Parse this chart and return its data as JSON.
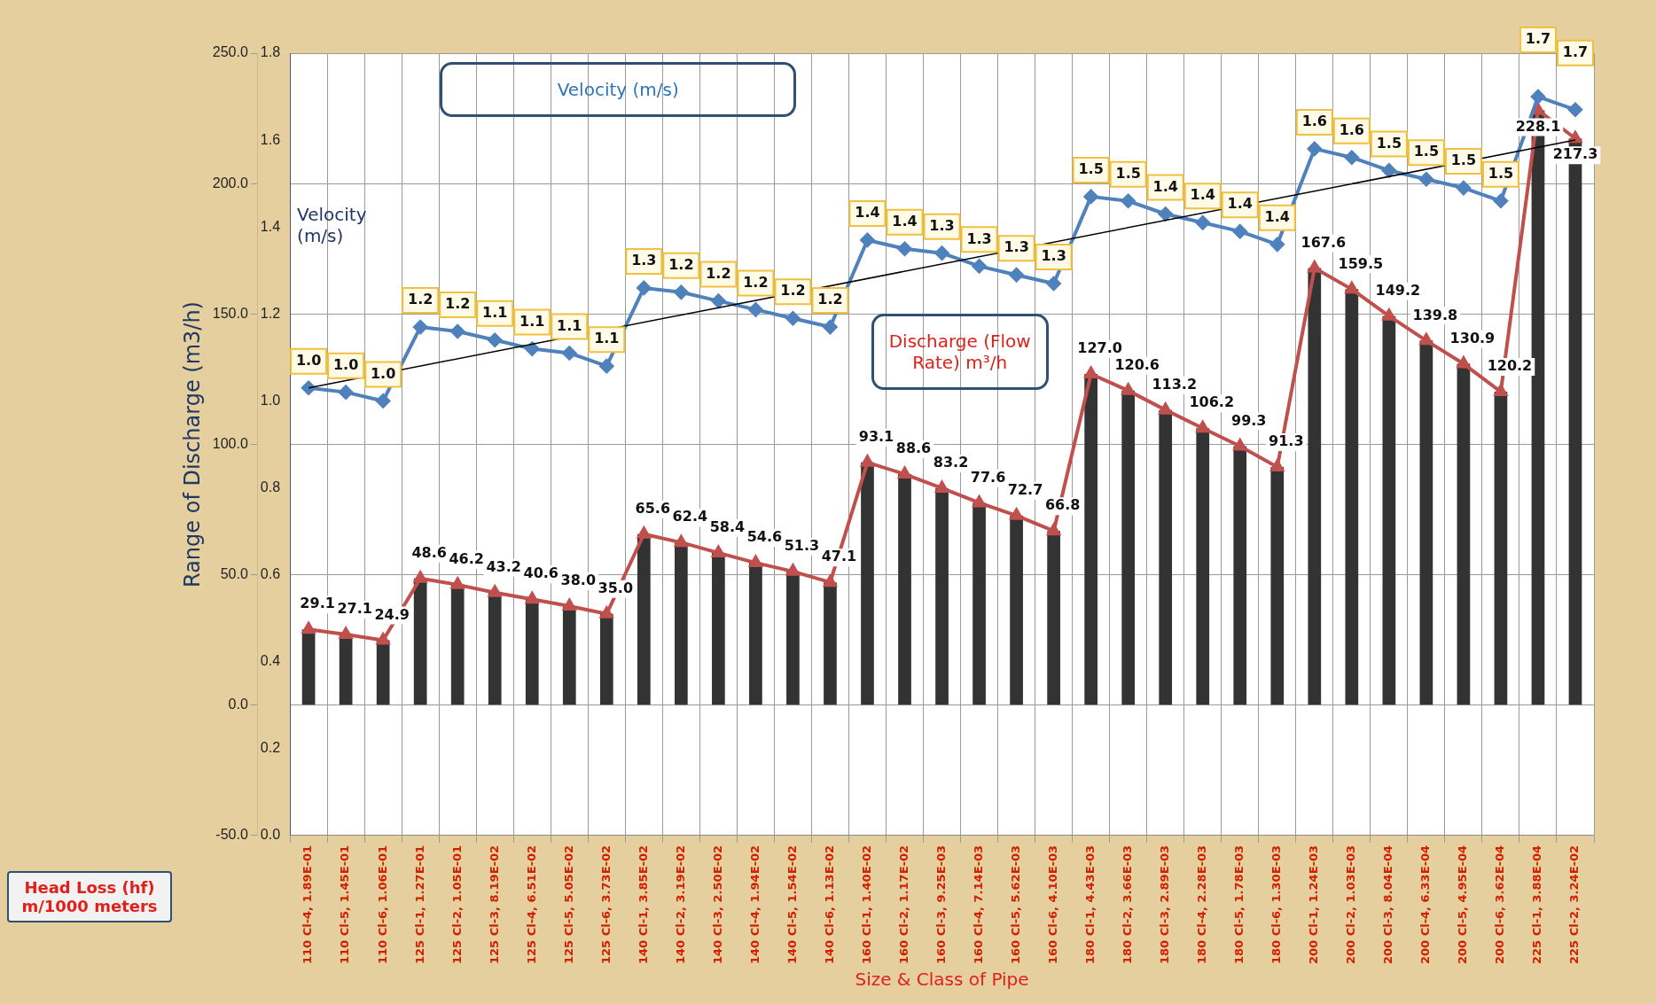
{
  "chart_data": {
    "type": "bar",
    "ylabel": "Range of Discharge (m3/h)",
    "y2label": "Velocity (m/s)",
    "xlabel": "Size & Class of Pipe",
    "annotations": [
      "Velocity (m/s)",
      "Discharge (Flow Rate) m³/h",
      "Head Loss (hf) m/1000 meters"
    ],
    "categories": [
      "110 Cl-4, 1.89E-01",
      "110 Cl-5, 1.45E-01",
      "110 Cl-6, 1.06E-01",
      "125 Cl-1, 1.27E-01",
      "125 Cl-2, 1.05E-01",
      "125 Cl-3, 8.19E-02",
      "125 Cl-4, 6.51E-02",
      "125 Cl-5, 5.05E-02",
      "125 Cl-6, 3.73E-02",
      "140 Cl-1, 3.85E-02",
      "140 Cl-2, 3.19E-02",
      "140 Cl-3, 2.50E-02",
      "140 Cl-4, 1.94E-02",
      "140 Cl-5, 1.54E-02",
      "140 Cl-6, 1.13E-02",
      "160 Cl-1, 1.40E-02",
      "160 Cl-2, 1.17E-02",
      "160 Cl-3, 9.25E-03",
      "160 Cl-4, 7.14E-03",
      "160 Cl-5, 5.62E-03",
      "160 Cl-6, 4.10E-03",
      "180 Cl-1, 4.43E-03",
      "180 Cl-2, 3.66E-03",
      "180 Cl-3, 2.89E-03",
      "180 Cl-4, 2.28E-03",
      "180 Cl-5, 1.78E-03",
      "180 Cl-6, 1.30E-03",
      "200 Cl-1, 1.24E-03",
      "200 Cl-2, 1.03E-03",
      "200 Cl-3, 8.04E-04",
      "200 Cl-4, 6.33E-04",
      "200 Cl-5, 4.95E-04",
      "200 Cl-6, 3.62E-04",
      "225 Cl-1, 3.88E-04",
      "225 Cl-2, 3.24E-02"
    ],
    "series": [
      {
        "color": "#333333",
        "values": [
          29.1,
          27.1,
          24.9,
          48.6,
          46.2,
          43.2,
          40.6,
          38.0,
          35.0,
          65.6,
          62.4,
          58.4,
          54.6,
          51.3,
          47.1,
          93.1,
          88.6,
          83.2,
          77.6,
          72.7,
          66.8,
          127.0,
          120.6,
          113.2,
          106.2,
          99.3,
          91.3,
          167.6,
          159.5,
          149.2,
          139.8,
          130.9,
          120.2,
          228.1,
          217.3
        ],
        "value_labels": [
          "29.1",
          "27.1",
          "24.9",
          "48.6",
          "46.2",
          "43.2",
          "40.6",
          "38.0",
          "35.0",
          "65.6",
          "62.4",
          "58.4",
          "54.6",
          "51.3",
          "47.1",
          "93.1",
          "88.6",
          "83.2",
          "77.6",
          "72.7",
          "66.8",
          "127.0",
          "120.6",
          "113.2",
          "106.2",
          "99.3",
          "91.3",
          "167.6",
          "159.5",
          "149.2",
          "139.8",
          "130.9",
          "120.2",
          "228.1",
          "217.3"
        ]
      },
      {
        "type": "line",
        "color": "#c0504d",
        "marker": "triangle",
        "values": [
          29.1,
          27.1,
          24.9,
          48.6,
          46.2,
          43.2,
          40.6,
          38.0,
          35.0,
          65.6,
          62.4,
          58.4,
          54.6,
          51.3,
          47.1,
          93.1,
          88.6,
          83.2,
          77.6,
          72.7,
          66.8,
          127.0,
          120.6,
          113.2,
          106.2,
          99.3,
          91.3,
          167.6,
          159.5,
          149.2,
          139.8,
          130.9,
          120.2,
          228.1,
          217.3
        ]
      },
      {
        "type": "line",
        "color": "#4f81bd",
        "marker": "diamond",
        "axis": "y2",
        "values": [
          1.03,
          1.02,
          1.0,
          1.17,
          1.16,
          1.14,
          1.12,
          1.11,
          1.08,
          1.26,
          1.25,
          1.23,
          1.21,
          1.19,
          1.17,
          1.37,
          1.35,
          1.34,
          1.31,
          1.29,
          1.27,
          1.47,
          1.46,
          1.43,
          1.41,
          1.39,
          1.36,
          1.58,
          1.56,
          1.53,
          1.51,
          1.49,
          1.46,
          1.7,
          1.67
        ],
        "value_labels": [
          "1.0",
          "1.0",
          "1.0",
          "1.2",
          "1.2",
          "1.1",
          "1.1",
          "1.1",
          "1.1",
          "1.3",
          "1.2",
          "1.2",
          "1.2",
          "1.2",
          "1.2",
          "1.4",
          "1.4",
          "1.3",
          "1.3",
          "1.3",
          "1.3",
          "1.5",
          "1.5",
          "1.4",
          "1.4",
          "1.4",
          "1.4",
          "1.6",
          "1.6",
          "1.5",
          "1.5",
          "1.5",
          "1.5",
          "1.7",
          "1.7"
        ]
      },
      {
        "type": "line",
        "color": "#000000",
        "marker": "none",
        "axis": "y2",
        "x": [
          "110 Cl-4, 1.89E-01",
          "225 Cl-2, 3.24E-02"
        ],
        "values": [
          1.03,
          1.6
        ]
      }
    ],
    "ylim": [
      -50,
      250
    ],
    "yticks": [
      {
        "value": -50,
        "label": "-50.0"
      },
      {
        "value": 0,
        "label": "0.0"
      },
      {
        "value": 50,
        "label": "50.0"
      },
      {
        "value": 100,
        "label": "100.0"
      },
      {
        "value": 150,
        "label": "150.0"
      },
      {
        "value": 200,
        "label": "200.0"
      },
      {
        "value": 250,
        "label": "250.0"
      }
    ],
    "y2lim": [
      0,
      1.8
    ],
    "y2ticks": [
      {
        "value": 0,
        "label": "0.0"
      },
      {
        "value": 0.2,
        "label": "0.2"
      },
      {
        "value": 0.4,
        "label": "0.4"
      },
      {
        "value": 0.6,
        "label": "0.6"
      },
      {
        "value": 0.8,
        "label": "0.8"
      },
      {
        "value": 1.0,
        "label": "1.0"
      },
      {
        "value": 1.2,
        "label": "1.2"
      },
      {
        "value": 1.4,
        "label": "1.4"
      },
      {
        "value": 1.6,
        "label": "1.6"
      },
      {
        "value": 1.8,
        "label": "1.8"
      }
    ],
    "grid": true
  }
}
